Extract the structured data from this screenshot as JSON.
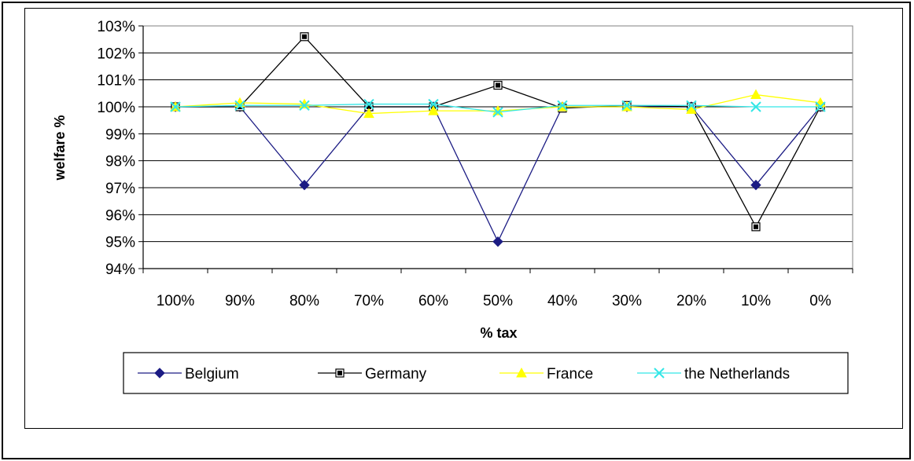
{
  "chart_data": {
    "type": "line",
    "title": "",
    "xlabel": "% tax",
    "ylabel": "welfare %",
    "categories": [
      "100%",
      "90%",
      "80%",
      "70%",
      "60%",
      "50%",
      "40%",
      "30%",
      "20%",
      "10%",
      "0%"
    ],
    "yticks": [
      "94%",
      "95%",
      "96%",
      "97%",
      "98%",
      "99%",
      "100%",
      "101%",
      "102%",
      "103%"
    ],
    "ylim": [
      94,
      103
    ],
    "grid": "horizontal",
    "legend_position": "bottom",
    "series": [
      {
        "name": "Belgium",
        "color": "#1c1c84",
        "marker": "diamond",
        "values": [
          100.0,
          100.0,
          97.1,
          100.0,
          100.0,
          95.0,
          100.0,
          100.0,
          100.0,
          97.1,
          100.0
        ]
      },
      {
        "name": "Germany",
        "color": "#000000",
        "marker": "square",
        "values": [
          100.0,
          100.0,
          102.6,
          100.0,
          100.0,
          100.8,
          99.95,
          100.05,
          100.0,
          95.55,
          100.0
        ]
      },
      {
        "name": "France",
        "color": "#ffff00",
        "marker": "triangle",
        "values": [
          100.0,
          100.15,
          100.1,
          99.75,
          99.85,
          99.85,
          100.0,
          100.0,
          99.9,
          100.45,
          100.15
        ]
      },
      {
        "name": "the Netherlands",
        "color": "#33e6e6",
        "marker": "x",
        "values": [
          100.0,
          100.05,
          100.05,
          100.1,
          100.1,
          99.8,
          100.05,
          100.05,
          100.05,
          100.0,
          100.0
        ]
      }
    ]
  }
}
